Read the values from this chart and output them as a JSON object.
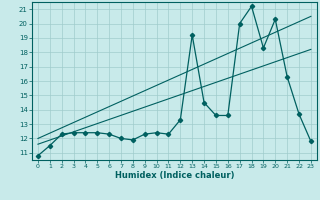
{
  "title": "",
  "xlabel": "Humidex (Indice chaleur)",
  "bg_color": "#c8eaea",
  "line_color": "#006060",
  "grid_color": "#a0cccc",
  "xlim": [
    -0.5,
    23.5
  ],
  "ylim": [
    10.5,
    21.5
  ],
  "yticks": [
    11,
    12,
    13,
    14,
    15,
    16,
    17,
    18,
    19,
    20,
    21
  ],
  "xticks": [
    0,
    1,
    2,
    3,
    4,
    5,
    6,
    7,
    8,
    9,
    10,
    11,
    12,
    13,
    14,
    15,
    16,
    17,
    18,
    19,
    20,
    21,
    22,
    23
  ],
  "series1_x": [
    0,
    1,
    2,
    3,
    4,
    5,
    6,
    7,
    8,
    9,
    10,
    11,
    12,
    13,
    14,
    15,
    16,
    17,
    18,
    19,
    20,
    21,
    22,
    23
  ],
  "series1_y": [
    10.8,
    11.5,
    12.3,
    12.4,
    12.4,
    12.4,
    12.3,
    12.0,
    11.9,
    12.3,
    12.4,
    12.3,
    13.3,
    19.2,
    14.5,
    13.6,
    13.6,
    20.0,
    21.2,
    18.3,
    20.3,
    16.3,
    13.7,
    11.8
  ],
  "series2_x": [
    0,
    23
  ],
  "series2_y": [
    12.0,
    20.5
  ],
  "series3_x": [
    0,
    23
  ],
  "series3_y": [
    11.6,
    18.2
  ]
}
